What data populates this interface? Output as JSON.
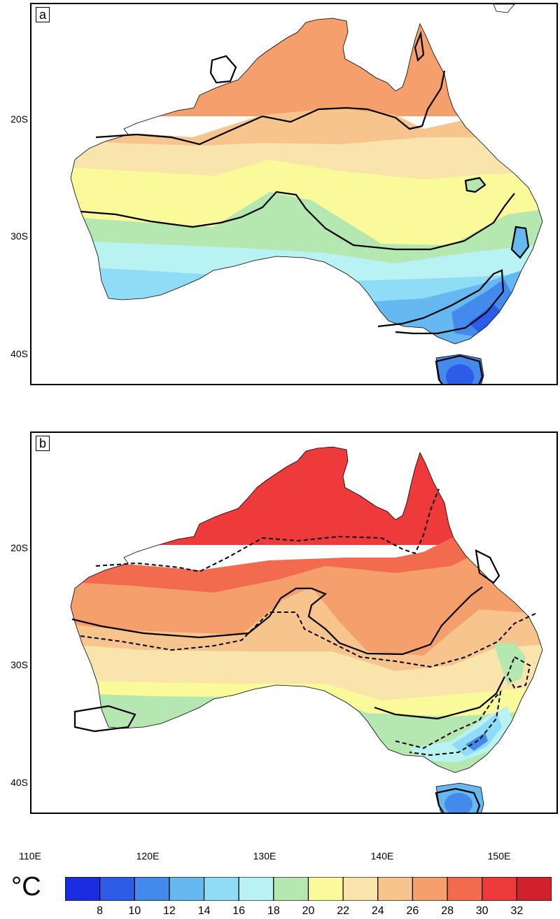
{
  "panels": [
    {
      "label": "a"
    },
    {
      "label": "b"
    }
  ],
  "lat_ticks": [
    "20S",
    "30S",
    "40S"
  ],
  "lon_ticks": [
    "110E",
    "120E",
    "130E",
    "140E",
    "150E"
  ],
  "colorbar": {
    "unit": "°C",
    "tick_labels": [
      "8",
      "10",
      "12",
      "14",
      "16",
      "18",
      "20",
      "22",
      "24",
      "26",
      "28",
      "30",
      "32"
    ],
    "colors": [
      "#1a2de0",
      "#2d5de8",
      "#4489ec",
      "#66b8f0",
      "#8fdcf6",
      "#b8f2f2",
      "#b5e8b0",
      "#fafa9a",
      "#f9e4ab",
      "#f7c48e",
      "#f5a06c",
      "#f26b4f",
      "#ee3a3a",
      "#d1212d"
    ]
  },
  "colors": {
    "land_outline": "#000000",
    "contour": "#000000"
  }
}
